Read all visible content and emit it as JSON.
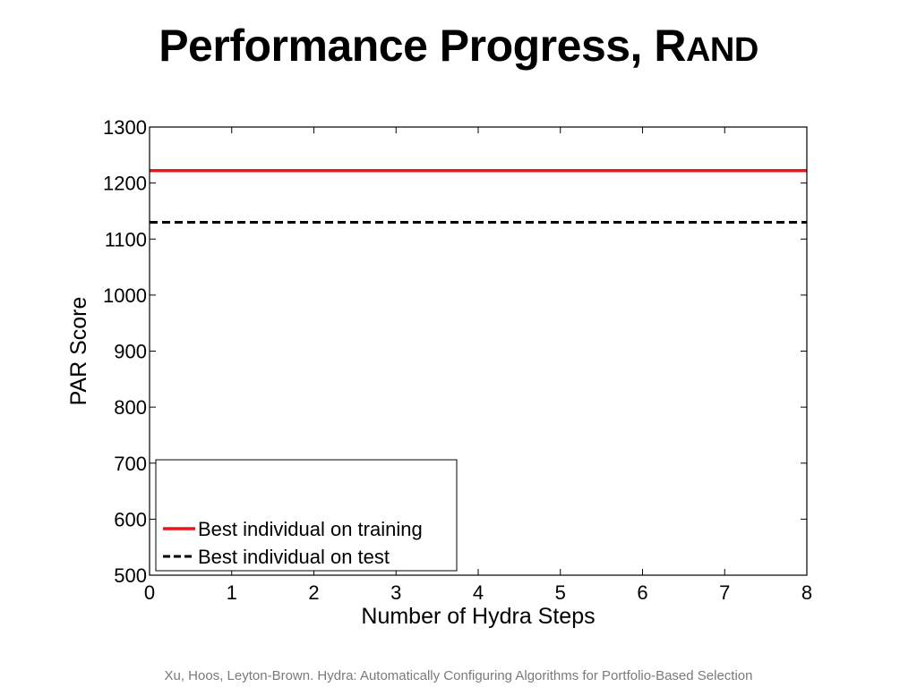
{
  "slide": {
    "title_main": "Performance Progress, R",
    "title_smallcaps": "AND",
    "footer": "Xu, Hoos, Leyton-Brown. Hydra: Automatically Configuring Algorithms for Portfolio-Based Selection"
  },
  "chart_data": {
    "type": "line",
    "title": "",
    "xlabel": "Number of Hydra Steps",
    "ylabel": "PAR Score",
    "xlim": [
      0,
      8
    ],
    "ylim": [
      500,
      1300
    ],
    "xticks": [
      0,
      1,
      2,
      3,
      4,
      5,
      6,
      7,
      8
    ],
    "yticks": [
      500,
      600,
      700,
      800,
      900,
      1000,
      1100,
      1200,
      1300
    ],
    "grid": false,
    "legend_position": "bottom-left",
    "series": [
      {
        "name": "Best individual on training",
        "color": "#e8161b",
        "style": "solid",
        "x": [
          0,
          8
        ],
        "y": [
          1222,
          1222
        ]
      },
      {
        "name": "Best individual on test",
        "color": "#000000",
        "style": "dashed",
        "x": [
          0,
          8
        ],
        "y": [
          1130,
          1130
        ]
      }
    ]
  }
}
